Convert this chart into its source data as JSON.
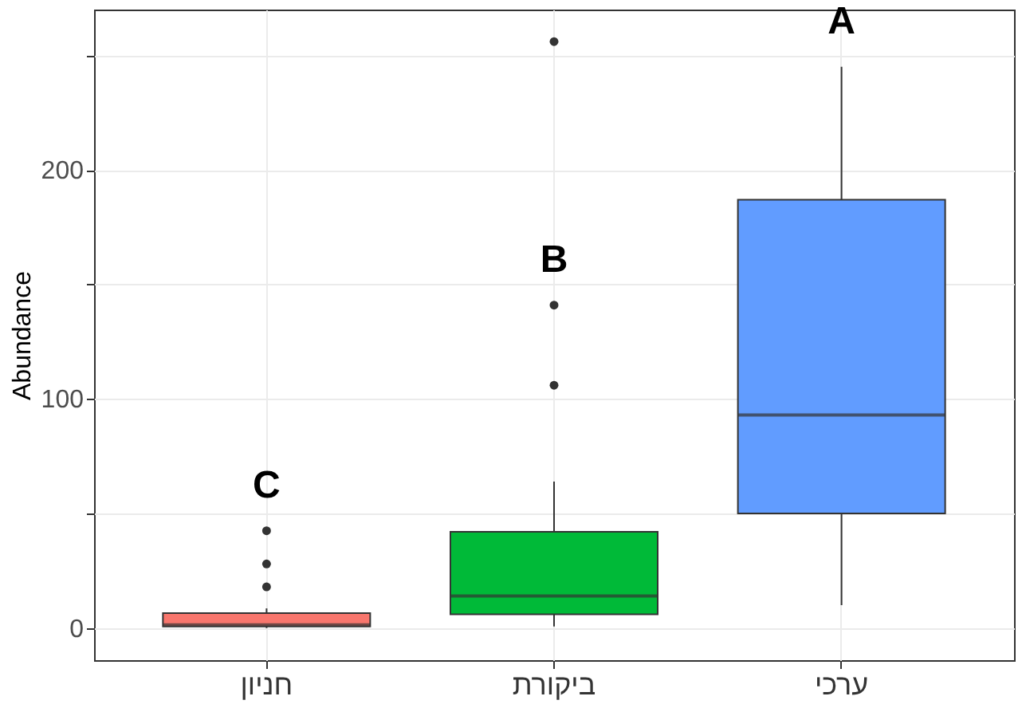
{
  "chart_data": {
    "type": "box",
    "ylabel": "Abundance",
    "categories": [
      "חניון",
      "ביקורת",
      "ערכי"
    ],
    "colors": [
      "#f8766d",
      "#00ba38",
      "#619cff"
    ],
    "boxes": [
      {
        "low": 0,
        "q1": 0.7,
        "median": 1.4,
        "q3": 6.5,
        "high": 8.6,
        "outliers": [
          18,
          28,
          42.5
        ]
      },
      {
        "low": 0.7,
        "q1": 6,
        "median": 14,
        "q3": 42,
        "high": 64,
        "outliers": [
          106,
          141,
          256
        ]
      },
      {
        "low": 10,
        "q1": 50,
        "median": 93,
        "q3": 187,
        "high": 245
      }
    ],
    "ylim": [
      -14,
      270
    ],
    "yticks": [
      0,
      {
        "value": 50,
        "label": null
      },
      100,
      {
        "value": 150,
        "label": null
      },
      200,
      {
        "value": 250,
        "label": null
      }
    ],
    "grid": true,
    "annotations": [
      "C",
      "B",
      "A"
    ]
  }
}
